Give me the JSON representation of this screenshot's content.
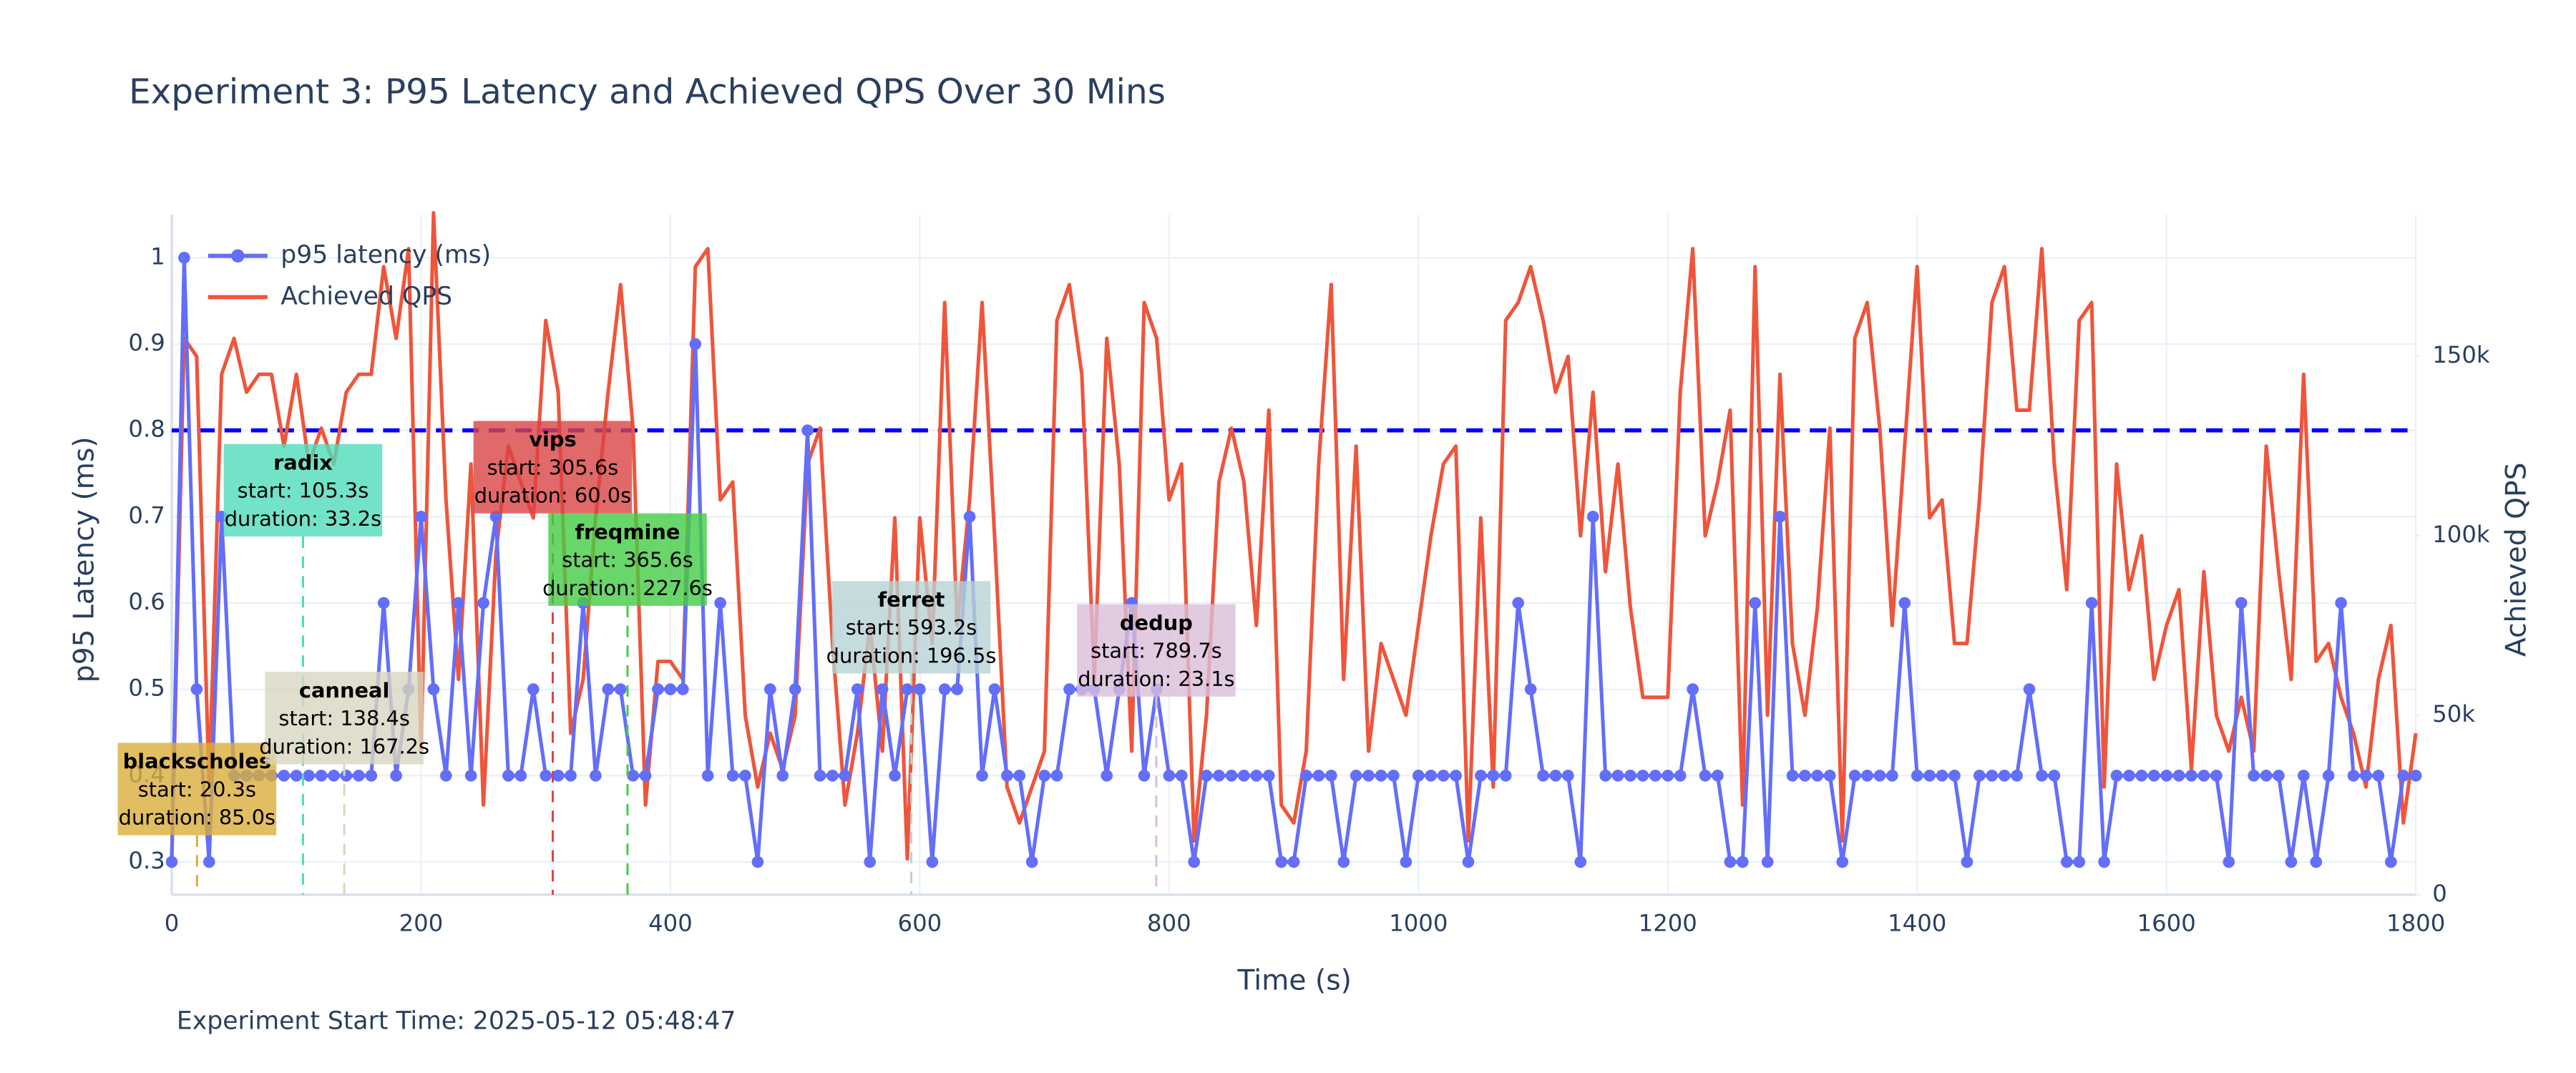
{
  "chart_data": {
    "type": "line",
    "title": "Experiment 3: P95 Latency and Achieved QPS Over 30 Mins",
    "x_label": "Time (s)",
    "y_label": "p95 Latency (ms)",
    "y2_label": "Achieved QPS",
    "footer": "Experiment Start Time: 2025-05-12 05:48:47",
    "xlim": [
      0,
      1800
    ],
    "xticks": [
      0,
      200,
      400,
      600,
      800,
      1000,
      1200,
      1400,
      1600,
      1800
    ],
    "ylim": [
      0.262,
      1.05
    ],
    "yticks": [
      0.3,
      0.4,
      0.5,
      0.6,
      0.7,
      0.8,
      0.9,
      1
    ],
    "y2lim": [
      0,
      189500
    ],
    "y2ticks": [
      0,
      {
        "value": 50000,
        "label": "50k"
      },
      {
        "value": 100000,
        "label": "100k"
      },
      {
        "value": 150000,
        "label": "150k"
      }
    ],
    "grid": true,
    "legend": "top-left",
    "threshold": {
      "value": 0.8,
      "color": "#0000ff"
    },
    "x": [
      0,
      10,
      20,
      30,
      40,
      50,
      60,
      70,
      80,
      90,
      100,
      110,
      120,
      130,
      140,
      150,
      160,
      170,
      180,
      190,
      200,
      210,
      220,
      230,
      240,
      250,
      260,
      270,
      280,
      290,
      300,
      310,
      320,
      330,
      340,
      350,
      360,
      370,
      380,
      390,
      400,
      410,
      420,
      430,
      440,
      450,
      460,
      470,
      480,
      490,
      500,
      510,
      520,
      530,
      540,
      550,
      560,
      570,
      580,
      590,
      600,
      610,
      620,
      630,
      640,
      650,
      660,
      670,
      680,
      690,
      700,
      710,
      720,
      730,
      740,
      750,
      760,
      770,
      780,
      790,
      800,
      810,
      820,
      830,
      840,
      850,
      860,
      870,
      880,
      890,
      900,
      910,
      920,
      930,
      940,
      950,
      960,
      970,
      980,
      990,
      1000,
      1010,
      1020,
      1030,
      1040,
      1050,
      1060,
      1070,
      1080,
      1090,
      1100,
      1110,
      1120,
      1130,
      1140,
      1150,
      1160,
      1170,
      1180,
      1190,
      1200,
      1210,
      1220,
      1230,
      1240,
      1250,
      1260,
      1270,
      1280,
      1290,
      1300,
      1310,
      1320,
      1330,
      1340,
      1350,
      1360,
      1370,
      1380,
      1390,
      1400,
      1410,
      1420,
      1430,
      1440,
      1450,
      1460,
      1470,
      1480,
      1490,
      1500,
      1510,
      1520,
      1530,
      1540,
      1550,
      1560,
      1570,
      1580,
      1590,
      1600,
      1610,
      1620,
      1630,
      1640,
      1650,
      1660,
      1670,
      1680,
      1690,
      1700,
      1710,
      1720,
      1730,
      1740,
      1750,
      1760,
      1770,
      1780,
      1790,
      1800
    ],
    "series": [
      {
        "name": "p95 latency (ms)",
        "color": "#636efa",
        "markers": true,
        "values": [
          0.3,
          1.0,
          0.5,
          0.3,
          0.7,
          0.4,
          0.4,
          0.4,
          0.4,
          0.4,
          0.4,
          0.4,
          0.4,
          0.4,
          0.4,
          0.4,
          0.4,
          0.6,
          0.4,
          0.5,
          0.7,
          0.5,
          0.4,
          0.6,
          0.4,
          0.6,
          0.7,
          0.4,
          0.4,
          0.5,
          0.4,
          0.4,
          0.4,
          0.6,
          0.4,
          0.5,
          0.5,
          0.4,
          0.4,
          0.5,
          0.5,
          0.5,
          0.9,
          0.4,
          0.6,
          0.4,
          0.4,
          0.3,
          0.5,
          0.4,
          0.5,
          0.8,
          0.4,
          0.4,
          0.4,
          0.5,
          0.3,
          0.5,
          0.4,
          0.5,
          0.5,
          0.3,
          0.5,
          0.5,
          0.7,
          0.4,
          0.5,
          0.4,
          0.4,
          0.3,
          0.4,
          0.4,
          0.5,
          0.5,
          0.5,
          0.4,
          0.5,
          0.6,
          0.4,
          0.5,
          0.4,
          0.4,
          0.3,
          0.4,
          0.4,
          0.4,
          0.4,
          0.4,
          0.4,
          0.3,
          0.3,
          0.4,
          0.4,
          0.4,
          0.3,
          0.4,
          0.4,
          0.4,
          0.4,
          0.3,
          0.4,
          0.4,
          0.4,
          0.4,
          0.3,
          0.4,
          0.4,
          0.4,
          0.6,
          0.5,
          0.4,
          0.4,
          0.4,
          0.3,
          0.7,
          0.4,
          0.4,
          0.4,
          0.4,
          0.4,
          0.4,
          0.4,
          0.5,
          0.4,
          0.4,
          0.3,
          0.3,
          0.6,
          0.3,
          0.7,
          0.4,
          0.4,
          0.4,
          0.4,
          0.3,
          0.4,
          0.4,
          0.4,
          0.4,
          0.6,
          0.4,
          0.4,
          0.4,
          0.4,
          0.3,
          0.4,
          0.4,
          0.4,
          0.4,
          0.5,
          0.4,
          0.4,
          0.3,
          0.3,
          0.6,
          0.3,
          0.4,
          0.4,
          0.4,
          0.4,
          0.4,
          0.4,
          0.4,
          0.4,
          0.4,
          0.3,
          0.6,
          0.4,
          0.4,
          0.4,
          0.3,
          0.4,
          0.3,
          0.4,
          0.6,
          0.4,
          0.4,
          0.4,
          0.3,
          0.4,
          0.4
        ]
      },
      {
        "name": "Achieved QPS",
        "color": "#ef553b",
        "axis": "y2",
        "markers": false,
        "values": [
          10000,
          155000,
          150000,
          30000,
          145000,
          155000,
          140000,
          145000,
          145000,
          125000,
          145000,
          120000,
          130000,
          120000,
          140000,
          145000,
          145000,
          175000,
          155000,
          180000,
          40000,
          190000,
          110000,
          60000,
          120000,
          25000,
          95000,
          125000,
          115000,
          105000,
          160000,
          140000,
          45000,
          60000,
          105000,
          140000,
          170000,
          130000,
          25000,
          65000,
          65000,
          60000,
          175000,
          180000,
          110000,
          115000,
          50000,
          30000,
          45000,
          35000,
          50000,
          120000,
          130000,
          70000,
          25000,
          45000,
          75000,
          40000,
          105000,
          10000,
          105000,
          70000,
          165000,
          75000,
          110000,
          165000,
          100000,
          30000,
          20000,
          30000,
          40000,
          160000,
          170000,
          145000,
          60000,
          155000,
          120000,
          40000,
          165000,
          155000,
          110000,
          120000,
          15000,
          50000,
          115000,
          130000,
          115000,
          75000,
          135000,
          25000,
          20000,
          40000,
          120000,
          170000,
          60000,
          125000,
          40000,
          70000,
          60000,
          50000,
          75000,
          100000,
          120000,
          125000,
          15000,
          105000,
          30000,
          160000,
          165000,
          175000,
          160000,
          140000,
          150000,
          100000,
          140000,
          90000,
          120000,
          80000,
          55000,
          55000,
          55000,
          140000,
          180000,
          100000,
          115000,
          135000,
          25000,
          175000,
          50000,
          145000,
          70000,
          50000,
          80000,
          130000,
          15000,
          155000,
          165000,
          130000,
          75000,
          125000,
          175000,
          105000,
          110000,
          70000,
          70000,
          110000,
          165000,
          175000,
          135000,
          135000,
          180000,
          120000,
          85000,
          160000,
          165000,
          30000,
          120000,
          85000,
          100000,
          60000,
          75000,
          85000,
          35000,
          90000,
          50000,
          40000,
          55000,
          40000,
          125000,
          90000,
          60000,
          145000,
          65000,
          70000,
          55000,
          45000,
          30000,
          60000,
          75000,
          20000,
          45000
        ]
      }
    ],
    "workloads": [
      {
        "name": "blackscholes",
        "start": 20.3,
        "start_label": "start: 20.3s",
        "duration": 85.0,
        "duration_label": "duration: 85.0s",
        "color": "#dbae3c"
      },
      {
        "name": "radix",
        "start": 105.3,
        "start_label": "start: 105.3s",
        "duration": 33.2,
        "duration_label": "duration: 33.2s",
        "color": "#4fdcbc"
      },
      {
        "name": "canneal",
        "start": 138.4,
        "start_label": "start: 138.4s",
        "duration": 167.2,
        "duration_label": "duration: 167.2s",
        "color": "#d8d6bf"
      },
      {
        "name": "vips",
        "start": 305.6,
        "start_label": "start: 305.6s",
        "duration": 60.0,
        "duration_label": "duration: 60.0s",
        "color": "#d94444"
      },
      {
        "name": "freqmine",
        "start": 365.6,
        "start_label": "start: 365.6s",
        "duration": 227.6,
        "duration_label": "duration: 227.6s",
        "color": "#44cc44"
      },
      {
        "name": "ferret",
        "start": 593.2,
        "start_label": "start: 593.2s",
        "duration": 196.5,
        "duration_label": "duration: 196.5s",
        "color": "#b8d2d6"
      },
      {
        "name": "dedup",
        "start": 789.7,
        "start_label": "start: 789.7s",
        "duration": 23.1,
        "duration_label": "duration: 23.1s",
        "color": "#d9bed9"
      }
    ]
  }
}
